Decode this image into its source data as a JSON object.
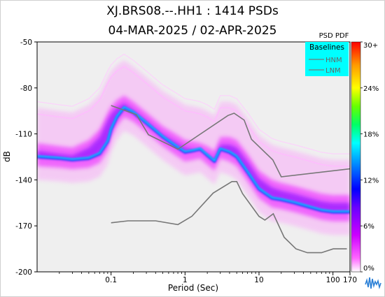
{
  "title_line1": "XJ.BRS08.--.HH1 : 1414 PSDs",
  "title_line2": "04-MAR-2025 / 02-APR-2025",
  "chart_data": {
    "type": "heatmap",
    "xlabel": "Period (Sec)",
    "ylabel": "dB",
    "x_scale": "log",
    "xlim": [
      0.01,
      170
    ],
    "ylim": [
      -200,
      -50
    ],
    "x_ticks": [
      "0.1",
      "1",
      "10",
      "100",
      "170"
    ],
    "x_tick_values": [
      0.1,
      1,
      10,
      100,
      170
    ],
    "y_ticks": [
      -50,
      -80,
      -110,
      -140,
      -170,
      -200
    ],
    "grid": false,
    "background_color": "#efefef",
    "colorbar": {
      "title": "PSD PDF",
      "tick_labels": [
        "30+",
        "24%",
        "18%",
        "12%",
        "6%",
        "0%"
      ],
      "range_percent": [
        0,
        30
      ],
      "colors": [
        "#ffffff",
        "#ff33ff",
        "#9a00ff",
        "#1a1aff",
        "#00aaff",
        "#00ffff",
        "#00ff66",
        "#99ff00",
        "#ffff00",
        "#ff9900",
        "#ff0000"
      ]
    },
    "legend": {
      "title": "Baselines",
      "placement": "top-right",
      "background": "#00ffff",
      "entries": [
        {
          "name": "HNM",
          "color": "#777777"
        },
        {
          "name": "LNM",
          "color": "#777777"
        }
      ]
    },
    "baselines": {
      "HNM": {
        "x": [
          0.1,
          0.22,
          0.32,
          0.8,
          3.8,
          4.6,
          6.3,
          7.9,
          15.4,
          20,
          354.8
        ],
        "y": [
          -91.5,
          -97.4,
          -110.5,
          -120.0,
          -98.0,
          -96.5,
          -101.0,
          -113.5,
          -127.0,
          -138.0,
          -131.0
        ]
      },
      "LNM": {
        "x": [
          0.1,
          0.17,
          0.4,
          0.8,
          1.24,
          2.4,
          4.3,
          5.0,
          6.0,
          10.0,
          12.0,
          15.6,
          21.9,
          31.6,
          45.0,
          70.0,
          101.0,
          154.0
        ],
        "y": [
          -168.0,
          -166.7,
          -166.7,
          -169.2,
          -163.7,
          -148.6,
          -141.1,
          -141.1,
          -149.0,
          -163.8,
          -166.2,
          -162.1,
          -177.5,
          -185.0,
          -187.5,
          -187.5,
          -185.0,
          -185.0
        ]
      }
    },
    "pdf_modes": [
      {
        "name": "main",
        "x": [
          0.01,
          0.02,
          0.03,
          0.05,
          0.07,
          0.09,
          0.1,
          0.12,
          0.15,
          0.2,
          0.3,
          0.5,
          0.8,
          1,
          1.3,
          1.6,
          2,
          2.5,
          3,
          4,
          5,
          7,
          10,
          15,
          20,
          30,
          50,
          70,
          100,
          170
        ],
        "y": [
          -126,
          -127,
          -128,
          -127,
          -124,
          -116,
          -108,
          -100,
          -94,
          -97,
          -104,
          -113,
          -120,
          -123,
          -122,
          -121,
          -125,
          -129,
          -121,
          -123,
          -126,
          -136,
          -147,
          -153,
          -154,
          -156,
          -159,
          -161,
          -162,
          -162
        ]
      },
      {
        "name": "upper",
        "x": [
          0.01,
          0.02,
          0.03,
          0.05,
          0.07,
          0.09,
          0.1,
          0.12,
          0.15,
          0.2,
          0.3,
          0.5,
          0.8,
          1,
          1.3,
          1.6,
          2,
          2.5,
          3,
          4,
          5,
          7,
          10,
          15,
          20,
          30,
          50,
          70,
          100,
          170
        ],
        "y": [
          -119,
          -121,
          -122,
          -117,
          -110,
          -99,
          -95,
          -91,
          -88,
          -92,
          -99,
          -108,
          -114,
          -117,
          -118,
          -119,
          -121,
          -124,
          -115,
          -115,
          -117,
          -126,
          -137,
          -143,
          -145,
          -147,
          -150,
          -152,
          -153,
          -153
        ]
      }
    ]
  }
}
